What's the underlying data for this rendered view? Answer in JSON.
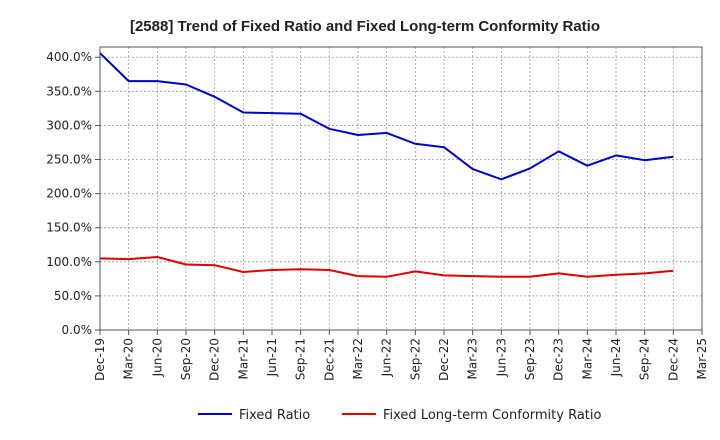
{
  "chart_data": {
    "type": "line",
    "title": "[2588]  Trend of Fixed Ratio and Fixed Long-term Conformity Ratio",
    "xlabel": "",
    "ylabel": "",
    "x_ticks": [
      "Dec-19",
      "Mar-20",
      "Jun-20",
      "Sep-20",
      "Dec-20",
      "Mar-21",
      "Jun-21",
      "Sep-21",
      "Dec-21",
      "Mar-22",
      "Jun-22",
      "Sep-22",
      "Dec-22",
      "Mar-23",
      "Jun-23",
      "Sep-23",
      "Dec-23",
      "Mar-24",
      "Jun-24",
      "Sep-24",
      "Dec-24",
      "Mar-25"
    ],
    "categories": [
      "Dec-19",
      "Mar-20",
      "Jun-20",
      "Sep-20",
      "Dec-20",
      "Mar-21",
      "Jun-21",
      "Sep-21",
      "Dec-21",
      "Mar-22",
      "Jun-22",
      "Sep-22",
      "Dec-22",
      "Mar-23",
      "Jun-23",
      "Sep-23",
      "Dec-23",
      "Mar-24",
      "Jun-24",
      "Sep-24",
      "Dec-24"
    ],
    "y_ticks": [
      "0.0%",
      "50.0%",
      "100.0%",
      "150.0%",
      "200.0%",
      "250.0%",
      "300.0%",
      "350.0%",
      "400.0%"
    ],
    "ylim": [
      0,
      415
    ],
    "grid": true,
    "legend_position": "bottom",
    "series": [
      {
        "name": "Fixed Ratio",
        "color": "#0000cc",
        "values": [
          406,
          365,
          365,
          360,
          342,
          319,
          318,
          317,
          295,
          286,
          289,
          273,
          268,
          236,
          221,
          237,
          262,
          241,
          256,
          249,
          254
        ]
      },
      {
        "name": "Fixed Long-term Conformity Ratio",
        "color": "#e00000",
        "values": [
          105,
          104,
          107,
          96,
          95,
          85,
          88,
          89,
          88,
          79,
          78,
          86,
          80,
          79,
          78,
          78,
          83,
          78,
          81,
          83,
          87
        ]
      }
    ]
  }
}
